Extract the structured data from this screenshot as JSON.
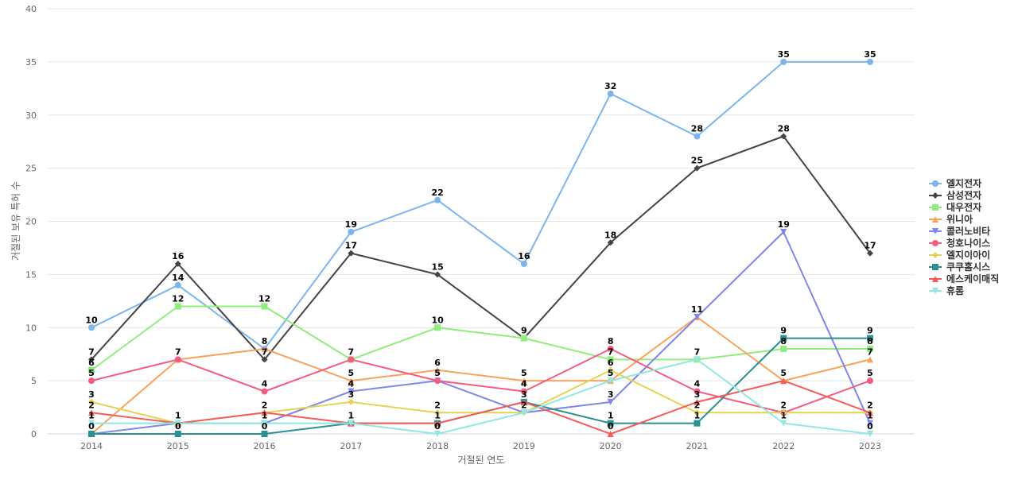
{
  "chart_data": {
    "type": "line",
    "xlabel": "거절된 연도",
    "ylabel": "거절된 보유 특허 수",
    "ylim": [
      0,
      40
    ],
    "yticks": [
      0,
      5,
      10,
      15,
      20,
      25,
      30,
      35,
      40
    ],
    "x": [
      "2014",
      "2015",
      "2016",
      "2017",
      "2018",
      "2019",
      "2020",
      "2021",
      "2022",
      "2023"
    ],
    "grid": true,
    "legend_position": "right",
    "series": [
      {
        "name": "엘지전자",
        "color": "#7cb5ec",
        "marker": "circle",
        "values": [
          10,
          14,
          8,
          19,
          22,
          16,
          32,
          28,
          35,
          35
        ]
      },
      {
        "name": "삼성전자",
        "color": "#434348",
        "marker": "diamond",
        "values": [
          7,
          16,
          7,
          17,
          15,
          9,
          18,
          25,
          28,
          17
        ]
      },
      {
        "name": "대우전자",
        "color": "#90ed7d",
        "marker": "square",
        "values": [
          6,
          12,
          12,
          7,
          10,
          9,
          7,
          7,
          8,
          8
        ]
      },
      {
        "name": "위니아",
        "color": "#f7a35c",
        "marker": "triangle",
        "values": [
          0,
          7,
          8,
          5,
          6,
          5,
          5,
          11,
          5,
          7
        ]
      },
      {
        "name": "콜러노비타",
        "color": "#8085e9",
        "marker": "triangle-down",
        "values": [
          0,
          1,
          1,
          4,
          5,
          2,
          3,
          11,
          19,
          1
        ]
      },
      {
        "name": "청호나이스",
        "color": "#f15c80",
        "marker": "circle",
        "values": [
          5,
          7,
          4,
          7,
          5,
          4,
          8,
          4,
          2,
          5
        ]
      },
      {
        "name": "엘지이아이",
        "color": "#e4d354",
        "marker": "diamond",
        "values": [
          3,
          1,
          2,
          3,
          2,
          2,
          6,
          2,
          2,
          2
        ]
      },
      {
        "name": "쿠쿠홈시스",
        "color": "#2b908f",
        "marker": "square",
        "values": [
          0,
          0,
          0,
          1,
          1,
          3,
          1,
          1,
          9,
          9
        ]
      },
      {
        "name": "에스케이매직",
        "color": "#f45b5b",
        "marker": "triangle",
        "values": [
          2,
          1,
          2,
          1,
          1,
          3,
          0,
          3,
          5,
          2
        ]
      },
      {
        "name": "휴롬",
        "color": "#91e8e1",
        "marker": "triangle-down",
        "values": [
          1,
          1,
          1,
          1,
          0,
          2,
          5,
          7,
          1,
          0
        ]
      }
    ],
    "point_labels": [
      {
        "x": "2014",
        "value": 10,
        "label": "10"
      },
      {
        "x": "2014",
        "value": 7,
        "label": "7"
      },
      {
        "x": "2014",
        "value": 6,
        "label": "6"
      },
      {
        "x": "2014",
        "value": 5,
        "label": "5"
      },
      {
        "x": "2014",
        "value": 3,
        "label": "3"
      },
      {
        "x": "2014",
        "value": 2,
        "label": "2"
      },
      {
        "x": "2014",
        "value": 1,
        "label": "1"
      },
      {
        "x": "2014",
        "value": 1,
        "label": "1"
      },
      {
        "x": "2014",
        "value": 0,
        "label": "0"
      },
      {
        "x": "2015",
        "value": 16,
        "label": "16"
      },
      {
        "x": "2015",
        "value": 14,
        "label": "14"
      },
      {
        "x": "2015",
        "value": 12,
        "label": "12"
      },
      {
        "x": "2015",
        "value": 7,
        "label": "7"
      },
      {
        "x": "2015",
        "value": 1,
        "label": "1"
      },
      {
        "x": "2015",
        "value": 0,
        "label": "0"
      },
      {
        "x": "2016",
        "value": 12,
        "label": "12"
      },
      {
        "x": "2016",
        "value": 8,
        "label": "8"
      },
      {
        "x": "2016",
        "value": 7,
        "label": "7"
      },
      {
        "x": "2016",
        "value": 4,
        "label": "4"
      },
      {
        "x": "2016",
        "value": 2,
        "label": "2"
      },
      {
        "x": "2016",
        "value": 1,
        "label": "1"
      },
      {
        "x": "2016",
        "value": 0,
        "label": "0"
      },
      {
        "x": "2017",
        "value": 19,
        "label": "19"
      },
      {
        "x": "2017",
        "value": 17,
        "label": "17"
      },
      {
        "x": "2017",
        "value": 7,
        "label": "7"
      },
      {
        "x": "2017",
        "value": 5,
        "label": "5"
      },
      {
        "x": "2017",
        "value": 4,
        "label": "4"
      },
      {
        "x": "2017",
        "value": 3,
        "label": "3"
      },
      {
        "x": "2017",
        "value": 1,
        "label": "1"
      },
      {
        "x": "2018",
        "value": 22,
        "label": "22"
      },
      {
        "x": "2018",
        "value": 15,
        "label": "15"
      },
      {
        "x": "2018",
        "value": 10,
        "label": "10"
      },
      {
        "x": "2018",
        "value": 6,
        "label": "6"
      },
      {
        "x": "2018",
        "value": 5,
        "label": "5"
      },
      {
        "x": "2018",
        "value": 2,
        "label": "2"
      },
      {
        "x": "2018",
        "value": 1,
        "label": "1"
      },
      {
        "x": "2018",
        "value": 0,
        "label": "0"
      },
      {
        "x": "2019",
        "value": 16,
        "label": "16"
      },
      {
        "x": "2019",
        "value": 9,
        "label": "9"
      },
      {
        "x": "2019",
        "value": 5,
        "label": "5"
      },
      {
        "x": "2019",
        "value": 4,
        "label": "4"
      },
      {
        "x": "2019",
        "value": 3,
        "label": "3"
      },
      {
        "x": "2019",
        "value": 2,
        "label": "2"
      },
      {
        "x": "2020",
        "value": 32,
        "label": "32"
      },
      {
        "x": "2020",
        "value": 18,
        "label": "18"
      },
      {
        "x": "2020",
        "value": 8,
        "label": "8"
      },
      {
        "x": "2020",
        "value": 7,
        "label": "7"
      },
      {
        "x": "2020",
        "value": 6,
        "label": "6"
      },
      {
        "x": "2020",
        "value": 5,
        "label": "5"
      },
      {
        "x": "2020",
        "value": 3,
        "label": "3"
      },
      {
        "x": "2020",
        "value": 1,
        "label": "1"
      },
      {
        "x": "2020",
        "value": 0,
        "label": "0"
      },
      {
        "x": "2021",
        "value": 28,
        "label": "28"
      },
      {
        "x": "2021",
        "value": 25,
        "label": "25"
      },
      {
        "x": "2021",
        "value": 11,
        "label": "11"
      },
      {
        "x": "2021",
        "value": 7,
        "label": "7"
      },
      {
        "x": "2021",
        "value": 4,
        "label": "4"
      },
      {
        "x": "2021",
        "value": 3,
        "label": "3"
      },
      {
        "x": "2021",
        "value": 2,
        "label": "2"
      },
      {
        "x": "2021",
        "value": 1,
        "label": "1"
      },
      {
        "x": "2022",
        "value": 35,
        "label": "35"
      },
      {
        "x": "2022",
        "value": 28,
        "label": "28"
      },
      {
        "x": "2022",
        "value": 19,
        "label": "19"
      },
      {
        "x": "2022",
        "value": 9,
        "label": "9"
      },
      {
        "x": "2022",
        "value": 8,
        "label": "8"
      },
      {
        "x": "2022",
        "value": 5,
        "label": "5"
      },
      {
        "x": "2022",
        "value": 2,
        "label": "2"
      },
      {
        "x": "2022",
        "value": 1,
        "label": "1"
      },
      {
        "x": "2023",
        "value": 35,
        "label": "35"
      },
      {
        "x": "2023",
        "value": 17,
        "label": "17"
      },
      {
        "x": "2023",
        "value": 9,
        "label": "9"
      },
      {
        "x": "2023",
        "value": 8,
        "label": "8"
      },
      {
        "x": "2023",
        "value": 7,
        "label": "7"
      },
      {
        "x": "2023",
        "value": 5,
        "label": "5"
      },
      {
        "x": "2023",
        "value": 2,
        "label": "2"
      },
      {
        "x": "2023",
        "value": 1,
        "label": "1"
      },
      {
        "x": "2023",
        "value": 0,
        "label": "0"
      }
    ]
  }
}
